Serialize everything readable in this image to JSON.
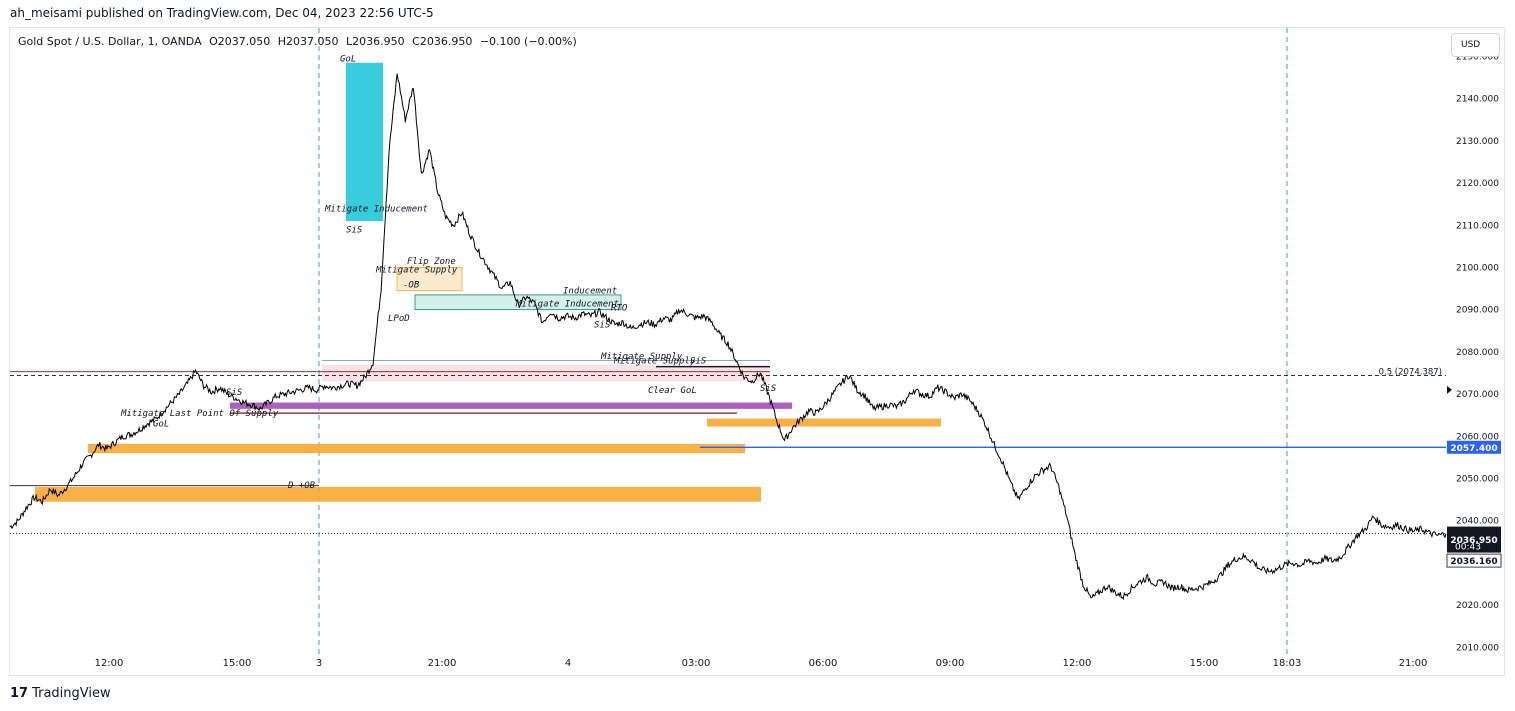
{
  "header": {
    "published_line": "ah_meisami published on TradingView.com, Dec 04, 2023 22:56 UTC-5",
    "currency_button": "USD",
    "brand": "TradingView"
  },
  "legend": {
    "symbol": "Gold Spot / U.S. Dollar, 1, OANDA",
    "open": "O2037.050",
    "high": "H2037.050",
    "low": "L2036.950",
    "close": "C2036.950",
    "change": "−0.100 (−0.00%)"
  },
  "price_labels": {
    "blue_line": "2057.400",
    "last_price": "2036.950",
    "countdown": "00:43",
    "prev_close": "2036.160",
    "fib_label": "0.5 (2074.387)"
  },
  "colors": {
    "accent_blue": "#2962ff",
    "box_orange": "#f8a731",
    "box_cyan": "#22c7dc",
    "box_purple": "#a450b8",
    "box_pink": "#f8d7da",
    "box_teal": "#c8ece4",
    "dark_red": "#7d1a1a",
    "candle": "#000000"
  },
  "annotations": [
    {
      "text": "GoL",
      "price": 2149.5
    },
    {
      "text": "Mitigate Inducement",
      "price": 2114.0
    },
    {
      "text": "SiS",
      "price": 2109.0
    },
    {
      "text": "Flip Zone",
      "price": 2101.5
    },
    {
      "text": "Mitigate Supply",
      "price": 2099.5
    },
    {
      "text": "-OB",
      "price": 2096.0
    },
    {
      "text": "Inducement",
      "price": 2094.5
    },
    {
      "text": "Mitigate Inducement",
      "price": 2091.5
    },
    {
      "text": "RTO",
      "price": 2090.5
    },
    {
      "text": "LPoD",
      "price": 2088.0
    },
    {
      "text": "SiS",
      "price": 2086.5
    },
    {
      "text": "Mitigate Supply",
      "price": 2079.0
    },
    {
      "text": "Mitigate Supply",
      "price": 2078.0
    },
    {
      "text": "SiS",
      "price": 2078.0
    },
    {
      "text": "SiS",
      "price": 2071.5
    },
    {
      "text": "Clear GoL",
      "price": 2071.0
    },
    {
      "text": "SiS",
      "price": 2070.5
    },
    {
      "text": "Mitigate Last Point Of Supply",
      "price": 2065.5
    },
    {
      "text": "GoL",
      "price": 2063.0
    },
    {
      "text": "D +OB",
      "price": 2048.5
    }
  ],
  "chart_data": {
    "type": "line",
    "title": "Gold Spot / U.S. Dollar, 1, OANDA",
    "xlabel": "",
    "ylabel": "",
    "ylim": [
      2007,
      2152
    ],
    "y_ticks": [
      2010,
      2020,
      2030,
      2040,
      2050,
      2060,
      2070,
      2080,
      2090,
      2100,
      2110,
      2120,
      2130,
      2140,
      2150
    ],
    "y_tick_labels": [
      "2010.000",
      "2020.000",
      "2030.000",
      "2040.000",
      "2050.000",
      "2060.000",
      "2070.000",
      "2080.000",
      "2090.000",
      "2100.000",
      "2110.000",
      "2120.000",
      "2130.000",
      "2140.000",
      "2150.000"
    ],
    "x_tick_labels": [
      "12:00",
      "15:00",
      "3",
      "21:00",
      "4",
      "03:00",
      "06:00",
      "09:00",
      "12:00",
      "15:00",
      "18:03",
      "21:00"
    ],
    "grid": false,
    "series": [
      {
        "values": [
          2038.5,
          2040.0,
          2043.0,
          2045.5,
          2044.5,
          2047.5,
          2046.0,
          2048.0,
          2050.5,
          2053.5,
          2055.5,
          2058.0,
          2057.0,
          2058.5,
          2060.0,
          2060.5,
          2061.5,
          2063.0,
          2064.0,
          2066.0,
          2068.0,
          2070.0,
          2072.5,
          2075.5,
          2072.0,
          2070.5,
          2071.5,
          2070.0,
          2069.0,
          2068.0,
          2067.5,
          2066.5,
          2068.0,
          2069.5,
          2070.0,
          2070.5,
          2071.0,
          2071.5,
          2071.0,
          2072.0,
          2071.5,
          2072.0,
          2072.5,
          2072.0,
          2074.0,
          2077.5,
          2095.0,
          2128.0,
          2146.0,
          2135.0,
          2143.0,
          2122.0,
          2128.0,
          2118.0,
          2112.0,
          2110.0,
          2113.0,
          2108.0,
          2104.0,
          2101.0,
          2098.0,
          2095.0,
          2096.5,
          2091.0,
          2093.0,
          2091.5,
          2087.0,
          2089.5,
          2088.0,
          2088.5,
          2088.0,
          2089.0,
          2088.5,
          2089.5,
          2088.0,
          2086.5,
          2087.0,
          2085.5,
          2086.5,
          2087.0,
          2086.5,
          2088.0,
          2087.5,
          2090.0,
          2089.0,
          2088.0,
          2088.5,
          2087.0,
          2084.0,
          2082.0,
          2078.0,
          2074.0,
          2073.0,
          2075.0,
          2070.0,
          2064.0,
          2059.0,
          2062.0,
          2064.0,
          2066.0,
          2065.5,
          2067.5,
          2070.0,
          2072.5,
          2074.5,
          2071.0,
          2069.5,
          2066.5,
          2067.0,
          2067.5,
          2067.0,
          2068.5,
          2071.0,
          2070.0,
          2069.5,
          2071.5,
          2070.5,
          2069.0,
          2070.0,
          2068.5,
          2066.0,
          2062.5,
          2058.0,
          2054.0,
          2049.0,
          2045.0,
          2048.0,
          2050.5,
          2052.0,
          2053.0,
          2048.0,
          2041.0,
          2032.0,
          2025.0,
          2021.5,
          2023.0,
          2024.5,
          2023.0,
          2022.0,
          2024.0,
          2025.5,
          2026.5,
          2025.0,
          2025.5,
          2024.0,
          2024.5,
          2023.5,
          2024.0,
          2024.5,
          2025.5,
          2027.0,
          2029.5,
          2031.0,
          2031.5,
          2030.5,
          2028.5,
          2028.0,
          2028.5,
          2029.5,
          2030.0,
          2029.5,
          2030.5,
          2030.0,
          2031.0,
          2030.5,
          2031.5,
          2034.0,
          2036.5,
          2038.0,
          2041.0,
          2039.0,
          2038.5,
          2039.0,
          2038.0,
          2037.5,
          2038.0,
          2037.0,
          2036.5,
          2036.95
        ]
      }
    ],
    "fib_level": {
      "label": "0.5 (2074.387)",
      "value": 2074.387
    },
    "horizontal_lines": [
      {
        "value": 2057.4,
        "color": "#2962ff",
        "label": "2057.400"
      },
      {
        "value": 2036.95,
        "color": "#131722",
        "style": "dotted"
      },
      {
        "value": 2075.3,
        "color": "#7d1a1a"
      }
    ],
    "zones": [
      {
        "name": "supply-cyan",
        "top": 2148.5,
        "bottom": 2111.0,
        "color": "#22c7dc"
      },
      {
        "name": "supply-orange-small",
        "top": 2100.0,
        "bottom": 2094.5,
        "color": "#fde8c8"
      },
      {
        "name": "inducement-teal",
        "top": 2093.5,
        "bottom": 2090.0,
        "color": "#c8ece4"
      },
      {
        "name": "supply-pink",
        "top": 2077.0,
        "bottom": 2073.0,
        "color": "#f8d7da"
      },
      {
        "name": "purple-zone",
        "top": 2068.0,
        "bottom": 2066.5,
        "color": "#a450b8"
      },
      {
        "name": "demand-orange-mid",
        "top": 2064.2,
        "bottom": 2062.3,
        "color": "#f8a731"
      },
      {
        "name": "demand-orange-gray",
        "top": 2058.2,
        "bottom": 2056.0,
        "color": "#f8a731"
      },
      {
        "name": "demand-orange-low",
        "top": 2048.0,
        "bottom": 2044.5,
        "color": "#f8a731"
      }
    ]
  }
}
